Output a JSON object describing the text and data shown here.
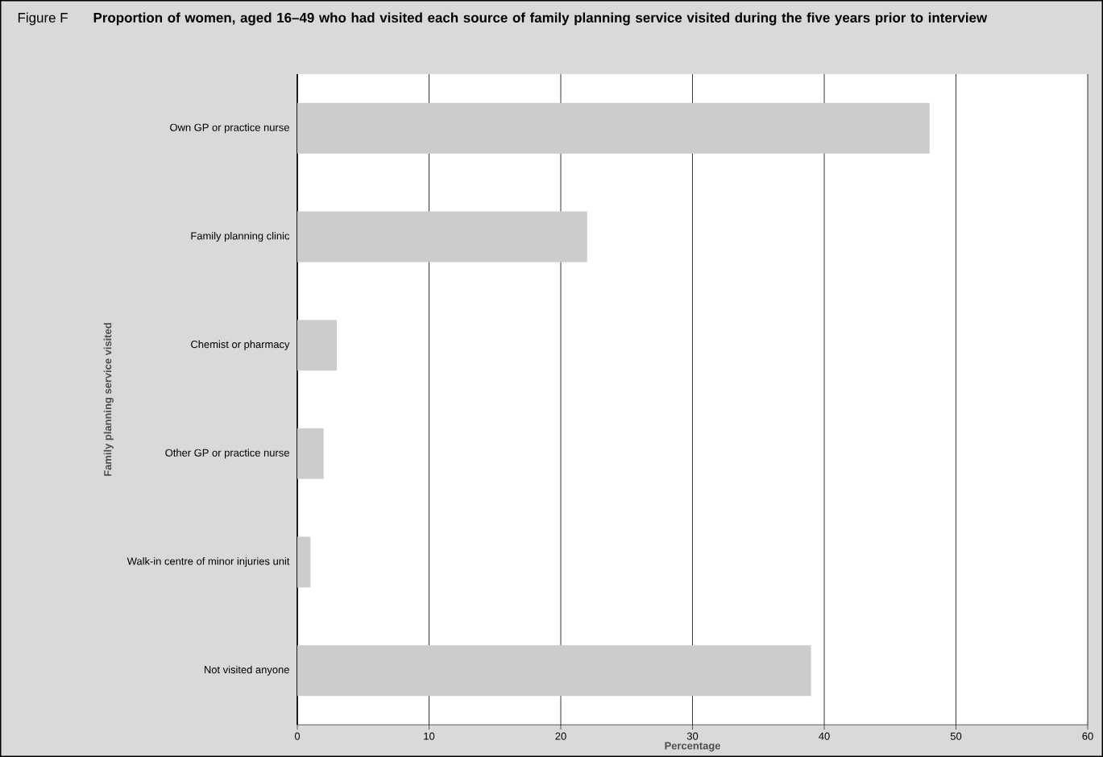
{
  "chart_data": {
    "type": "bar",
    "orientation": "horizontal",
    "title": "Proportion of women, aged 16–49 who had visited each source of family planning service visited during the five years prior to interview",
    "annotations": [
      "Figure F"
    ],
    "xlabel": "Percentage",
    "ylabel": "Family planning service visited",
    "categories": [
      "Own GP or practice nurse",
      "Family planning clinic",
      "Chemist or pharmacy",
      "Other GP or practice nurse",
      "Walk-in centre of minor injuries unit",
      "Not visited anyone"
    ],
    "values": [
      48,
      22,
      3,
      2,
      1,
      39
    ],
    "color": "#cccccc",
    "xlim": [
      0,
      60
    ],
    "xticks": [
      0,
      10,
      20,
      30,
      40,
      50,
      60
    ],
    "grid": "x"
  }
}
